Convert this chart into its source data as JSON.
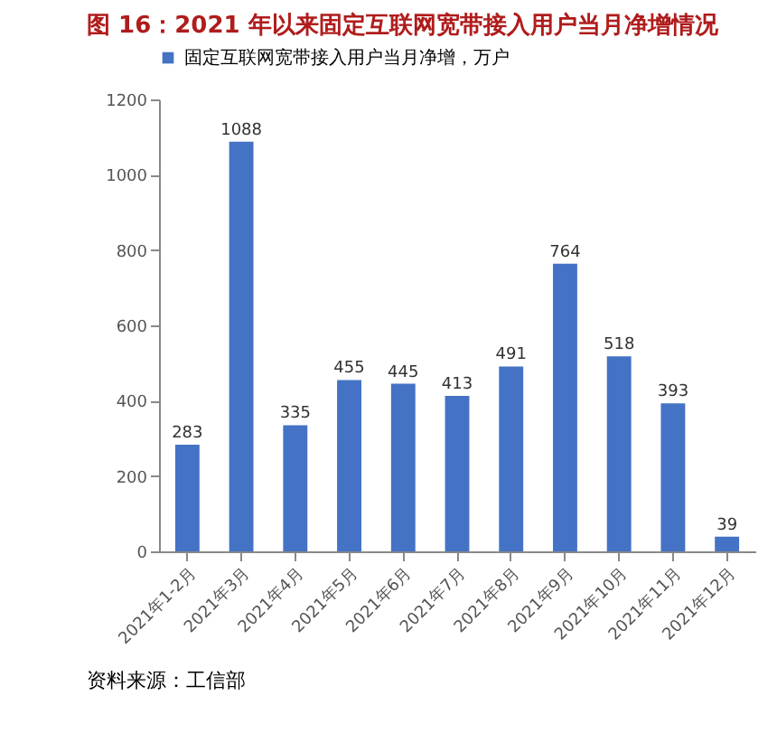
{
  "chart_data": {
    "type": "bar",
    "title": "图  16：2021 年以来固定互联网宽带接入用户当月净增情况",
    "categories": [
      "2021年1-2月",
      "2021年3月",
      "2021年4月",
      "2021年5月",
      "2021年6月",
      "2021年7月",
      "2021年8月",
      "2021年9月",
      "2021年10月",
      "2021年11月",
      "2021年12月"
    ],
    "series": [
      {
        "name": "固定互联网宽带接入用户当月净增，万户",
        "color": "#4472c4",
        "values": [
          283,
          1088,
          335,
          455,
          445,
          413,
          491,
          764,
          518,
          393,
          39
        ]
      }
    ],
    "ylim": [
      0,
      1200
    ],
    "yticks": [
      0,
      200,
      400,
      600,
      800,
      1000,
      1200
    ],
    "data_labels": true,
    "legend": "top",
    "grid": false,
    "annotations": [
      "资料来源：工信部"
    ]
  }
}
